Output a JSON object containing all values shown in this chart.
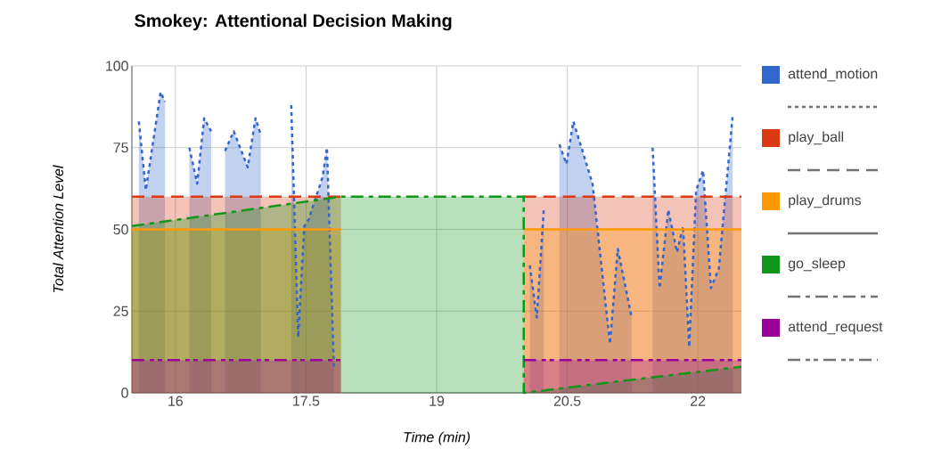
{
  "chart_data": {
    "type": "area",
    "title": "Smokey: Attentional Decision Making",
    "xlabel": "Time (min)",
    "ylabel": "Total Attention Level",
    "xlim": [
      15.5,
      22.5
    ],
    "ylim": [
      0,
      100
    ],
    "xticks": [
      16,
      17.5,
      19,
      20.5,
      22
    ],
    "yticks": [
      0,
      25,
      50,
      75,
      100
    ],
    "grid": true,
    "legend": "right",
    "series": [
      {
        "name": "attend_motion",
        "color": "#3366cc",
        "line_style": "dotted",
        "x": [
          15.58,
          15.66,
          15.83,
          15.88,
          15.9,
          16.16,
          16.25,
          16.33,
          16.41,
          16.45,
          16.57,
          16.67,
          16.83,
          16.92,
          16.98,
          17.1,
          17.33,
          17.41,
          17.48,
          17.53,
          17.69,
          17.74,
          17.82,
          18.5,
          20.07,
          20.15,
          20.23,
          20.3,
          20.41,
          20.49,
          20.57,
          20.64,
          20.79,
          20.99,
          21.08,
          21.24,
          21.35,
          21.48,
          21.56,
          21.66,
          21.76,
          21.83,
          21.9,
          21.98,
          22.06,
          22.15,
          22.24,
          22.4
        ],
        "values": [
          83,
          62,
          92,
          89,
          null,
          75,
          64,
          84,
          80,
          null,
          74,
          80,
          69,
          84,
          79,
          null,
          88,
          17,
          51,
          53,
          66,
          75,
          8,
          null,
          39,
          23,
          56,
          null,
          76,
          70,
          83,
          77,
          64,
          15,
          44,
          23,
          null,
          75,
          32,
          56,
          43,
          51,
          14,
          62,
          68,
          32,
          38,
          85
        ]
      },
      {
        "name": "play_ball",
        "color": "#dc3912",
        "line_style": "dashed",
        "x": [
          15.5,
          17.9,
          19,
          20.0,
          22.5
        ],
        "values": [
          60,
          60,
          null,
          60,
          60
        ]
      },
      {
        "name": "play_drums",
        "color": "#ff9900",
        "line_style": "solid",
        "x": [
          15.5,
          17.9,
          19,
          20.0,
          22.5
        ],
        "values": [
          50,
          50,
          null,
          50,
          50
        ]
      },
      {
        "name": "go_sleep",
        "color": "#109618",
        "line_style": "dashdot",
        "x": [
          15.5,
          17.9,
          20.0,
          20.0,
          22.5
        ],
        "values": [
          51,
          60,
          60,
          0,
          8
        ]
      },
      {
        "name": "attend_request",
        "color": "#990099",
        "line_style": "dashdotdot",
        "x": [
          15.5,
          17.9,
          19,
          20.0,
          22.5
        ],
        "values": [
          10,
          10,
          null,
          10,
          10
        ]
      }
    ]
  }
}
